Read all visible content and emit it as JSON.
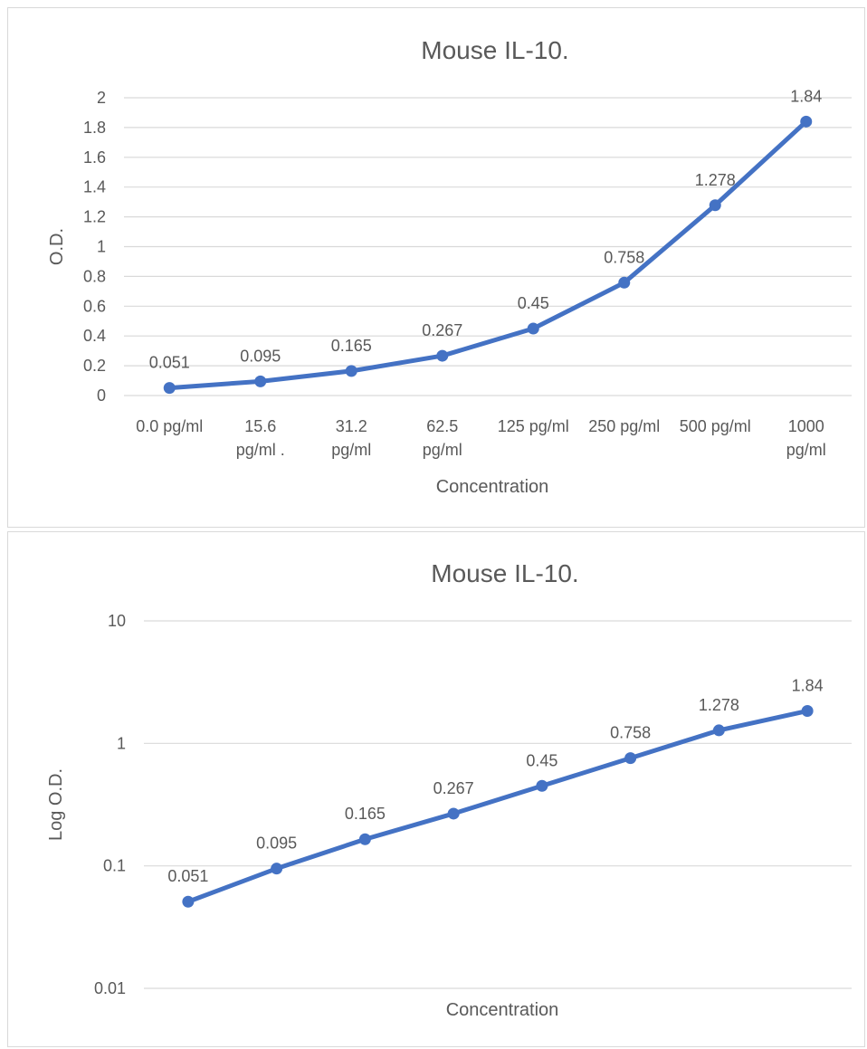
{
  "chart_data": [
    {
      "type": "line",
      "title": "Mouse IL-10.",
      "xlabel": "Concentration",
      "ylabel": "O.D.",
      "categories": [
        "0.0 pg/ml",
        "15.6 pg/ml .",
        "31.2 pg/ml",
        "62.5 pg/ml",
        "125 pg/ml",
        "250 pg/ml",
        "500 pg/ml",
        "1000 pg/ml"
      ],
      "category_lines": [
        [
          "0.0 pg/ml"
        ],
        [
          "15.6",
          "pg/ml ."
        ],
        [
          "31.2",
          "pg/ml"
        ],
        [
          "62.5",
          "pg/ml"
        ],
        [
          "125 pg/ml"
        ],
        [
          "250 pg/ml"
        ],
        [
          "500 pg/ml"
        ],
        [
          "1000",
          "pg/ml"
        ]
      ],
      "series": [
        {
          "values": [
            0.051,
            0.095,
            0.165,
            0.267,
            0.45,
            0.758,
            1.278,
            1.84
          ]
        }
      ],
      "data_labels": [
        "0.051",
        "0.095",
        "0.165",
        "0.267",
        "0.45",
        "0.758",
        "1.278",
        "1.84"
      ],
      "ylim": [
        0,
        2
      ],
      "yticks": [
        "0",
        "0.2",
        "0.4",
        "0.6",
        "0.8",
        "1",
        "1.2",
        "1.4",
        "1.6",
        "1.8",
        "2"
      ],
      "grid": true,
      "line_color": "#4472c4"
    },
    {
      "type": "line",
      "title": "Mouse IL-10.",
      "xlabel": "Concentration",
      "ylabel": "Log O.D.",
      "yscale": "log",
      "series": [
        {
          "values": [
            0.051,
            0.095,
            0.165,
            0.267,
            0.45,
            0.758,
            1.278,
            1.84
          ]
        }
      ],
      "data_labels": [
        "0.051",
        "0.095",
        "0.165",
        "0.267",
        "0.45",
        "0.758",
        "1.278",
        "1.84"
      ],
      "ylim": [
        0.01,
        10
      ],
      "yticks": [
        "0.01",
        "0.1",
        "1",
        "10"
      ],
      "grid": true,
      "line_color": "#4472c4"
    }
  ]
}
